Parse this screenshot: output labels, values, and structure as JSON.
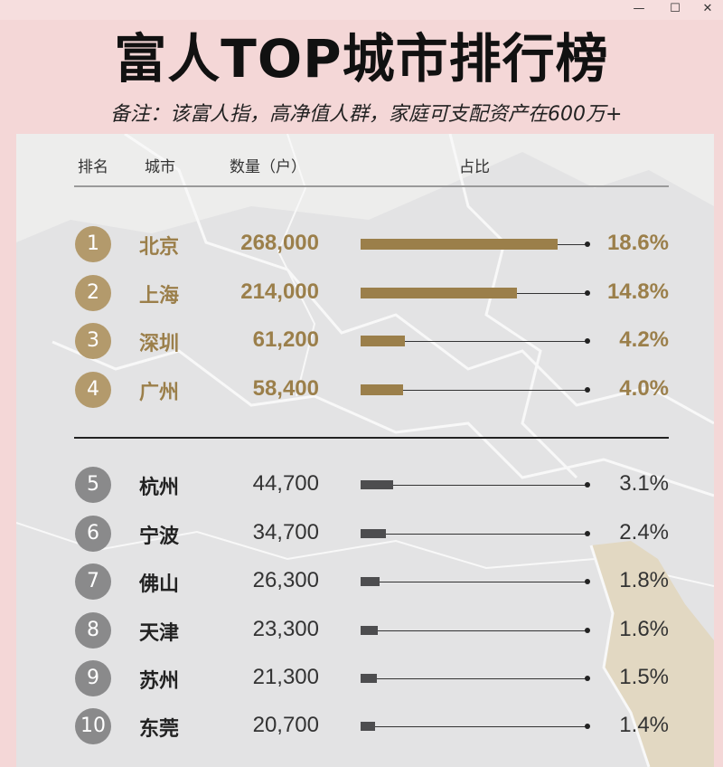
{
  "window": {
    "minimize_label": "—",
    "maximize_label": "☐",
    "close_label": "✕"
  },
  "title": "富人TOP城市排行榜",
  "subtitle": "备注：该富人指，高净值人群，家庭可支配资产在600万+",
  "header": {
    "rank": "排名",
    "city": "城市",
    "count": "数量（户）",
    "share": "占比"
  },
  "colors": {
    "top_accent": "#9b7f4a",
    "rest_accent": "#4d4d4f",
    "badge_gold": "#b39a6c",
    "badge_gray": "#8a8a8b"
  },
  "chart_data": {
    "type": "bar",
    "title": "富人TOP城市排行榜",
    "categories": [
      "北京",
      "上海",
      "深圳",
      "广州",
      "杭州",
      "宁波",
      "佛山",
      "天津",
      "苏州",
      "东莞"
    ],
    "ranks": [
      "1",
      "2",
      "3",
      "4",
      "5",
      "6",
      "7",
      "8",
      "9",
      "10"
    ],
    "counts": [
      "268,000",
      "214,000",
      "61,200",
      "58,400",
      "44,700",
      "34,700",
      "26,300",
      "23,300",
      "21,300",
      "20,700"
    ],
    "values": [
      18.6,
      14.8,
      4.2,
      4.0,
      3.1,
      2.4,
      1.8,
      1.6,
      1.5,
      1.4
    ],
    "value_labels": [
      "18.6%",
      "14.8%",
      "4.2%",
      "4.0%",
      "3.1%",
      "2.4%",
      "1.8%",
      "1.6%",
      "1.5%",
      "1.4%"
    ],
    "highlight_top": 4
  }
}
